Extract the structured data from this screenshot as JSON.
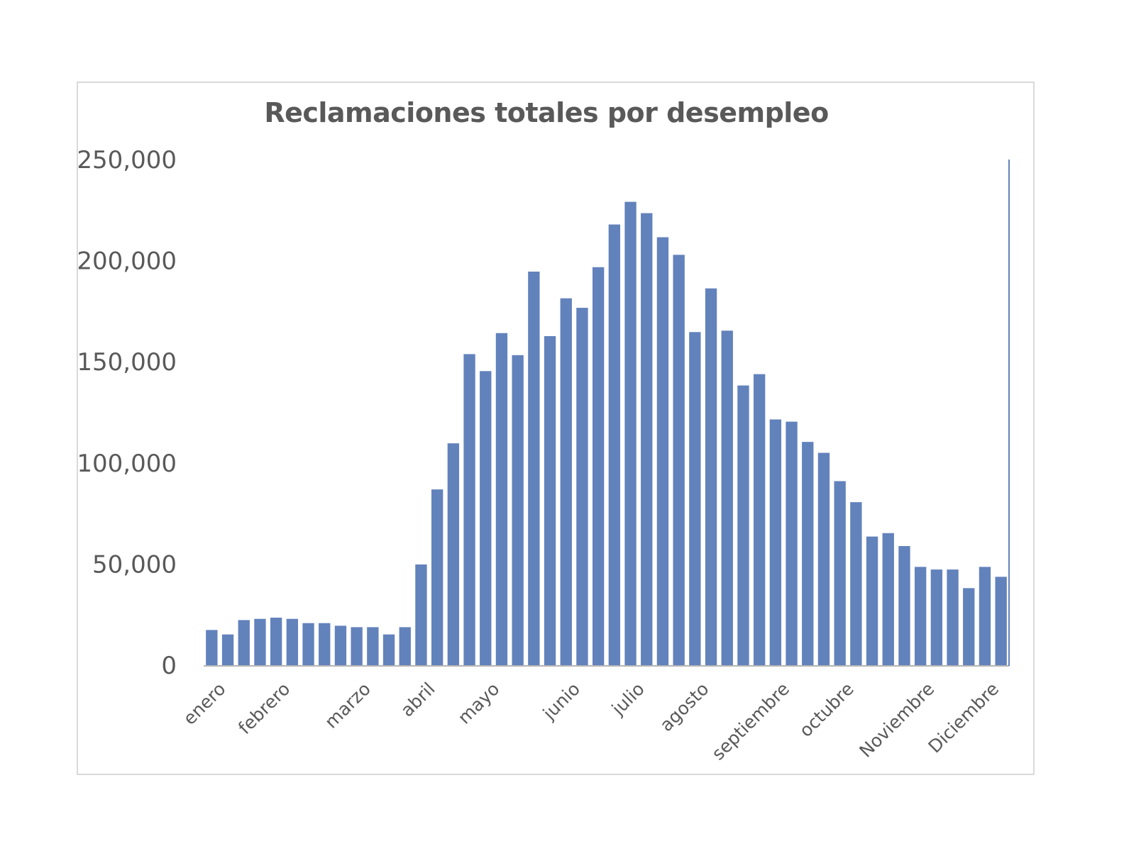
{
  "chart_data": {
    "type": "bar",
    "title": "Reclamaciones totales por desempleo",
    "xlabel": "",
    "ylabel": "",
    "ylim": [
      0,
      250000
    ],
    "yticks": [
      0,
      50000,
      100000,
      150000,
      200000,
      250000
    ],
    "ytick_labels": [
      "0",
      "50,000",
      "100,000",
      "150,000",
      "200,000",
      "250,000"
    ],
    "grid": false,
    "legend": "none",
    "bar_color": "#6282bc",
    "axis_color": "#b4b4b4",
    "month_labels": [
      {
        "label": "enero",
        "index": 0
      },
      {
        "label": "febrero",
        "index": 4
      },
      {
        "label": "marzo",
        "index": 9
      },
      {
        "label": "abril",
        "index": 13
      },
      {
        "label": "mayo",
        "index": 17
      },
      {
        "label": "junio",
        "index": 22
      },
      {
        "label": "julio",
        "index": 26
      },
      {
        "label": "agosto",
        "index": 30
      },
      {
        "label": "septiembre",
        "index": 35
      },
      {
        "label": "octubre",
        "index": 39
      },
      {
        "label": "Noviembre",
        "index": 44
      },
      {
        "label": "Diciembre",
        "index": 48
      }
    ],
    "values": [
      17400,
      15200,
      22300,
      22900,
      23500,
      22900,
      20800,
      20800,
      19500,
      18800,
      18800,
      15200,
      18800,
      49800,
      86900,
      109700,
      153800,
      145400,
      164200,
      153300,
      194600,
      162700,
      181400,
      176700,
      196800,
      217900,
      229100,
      223500,
      211600,
      202900,
      164700,
      186300,
      165400,
      138300,
      143900,
      121500,
      120400,
      110400,
      105000,
      91000,
      80600,
      63600,
      65300,
      58900,
      48600,
      47300,
      47300,
      38100,
      48600,
      43700
    ],
    "end_marker_value": 250000
  }
}
